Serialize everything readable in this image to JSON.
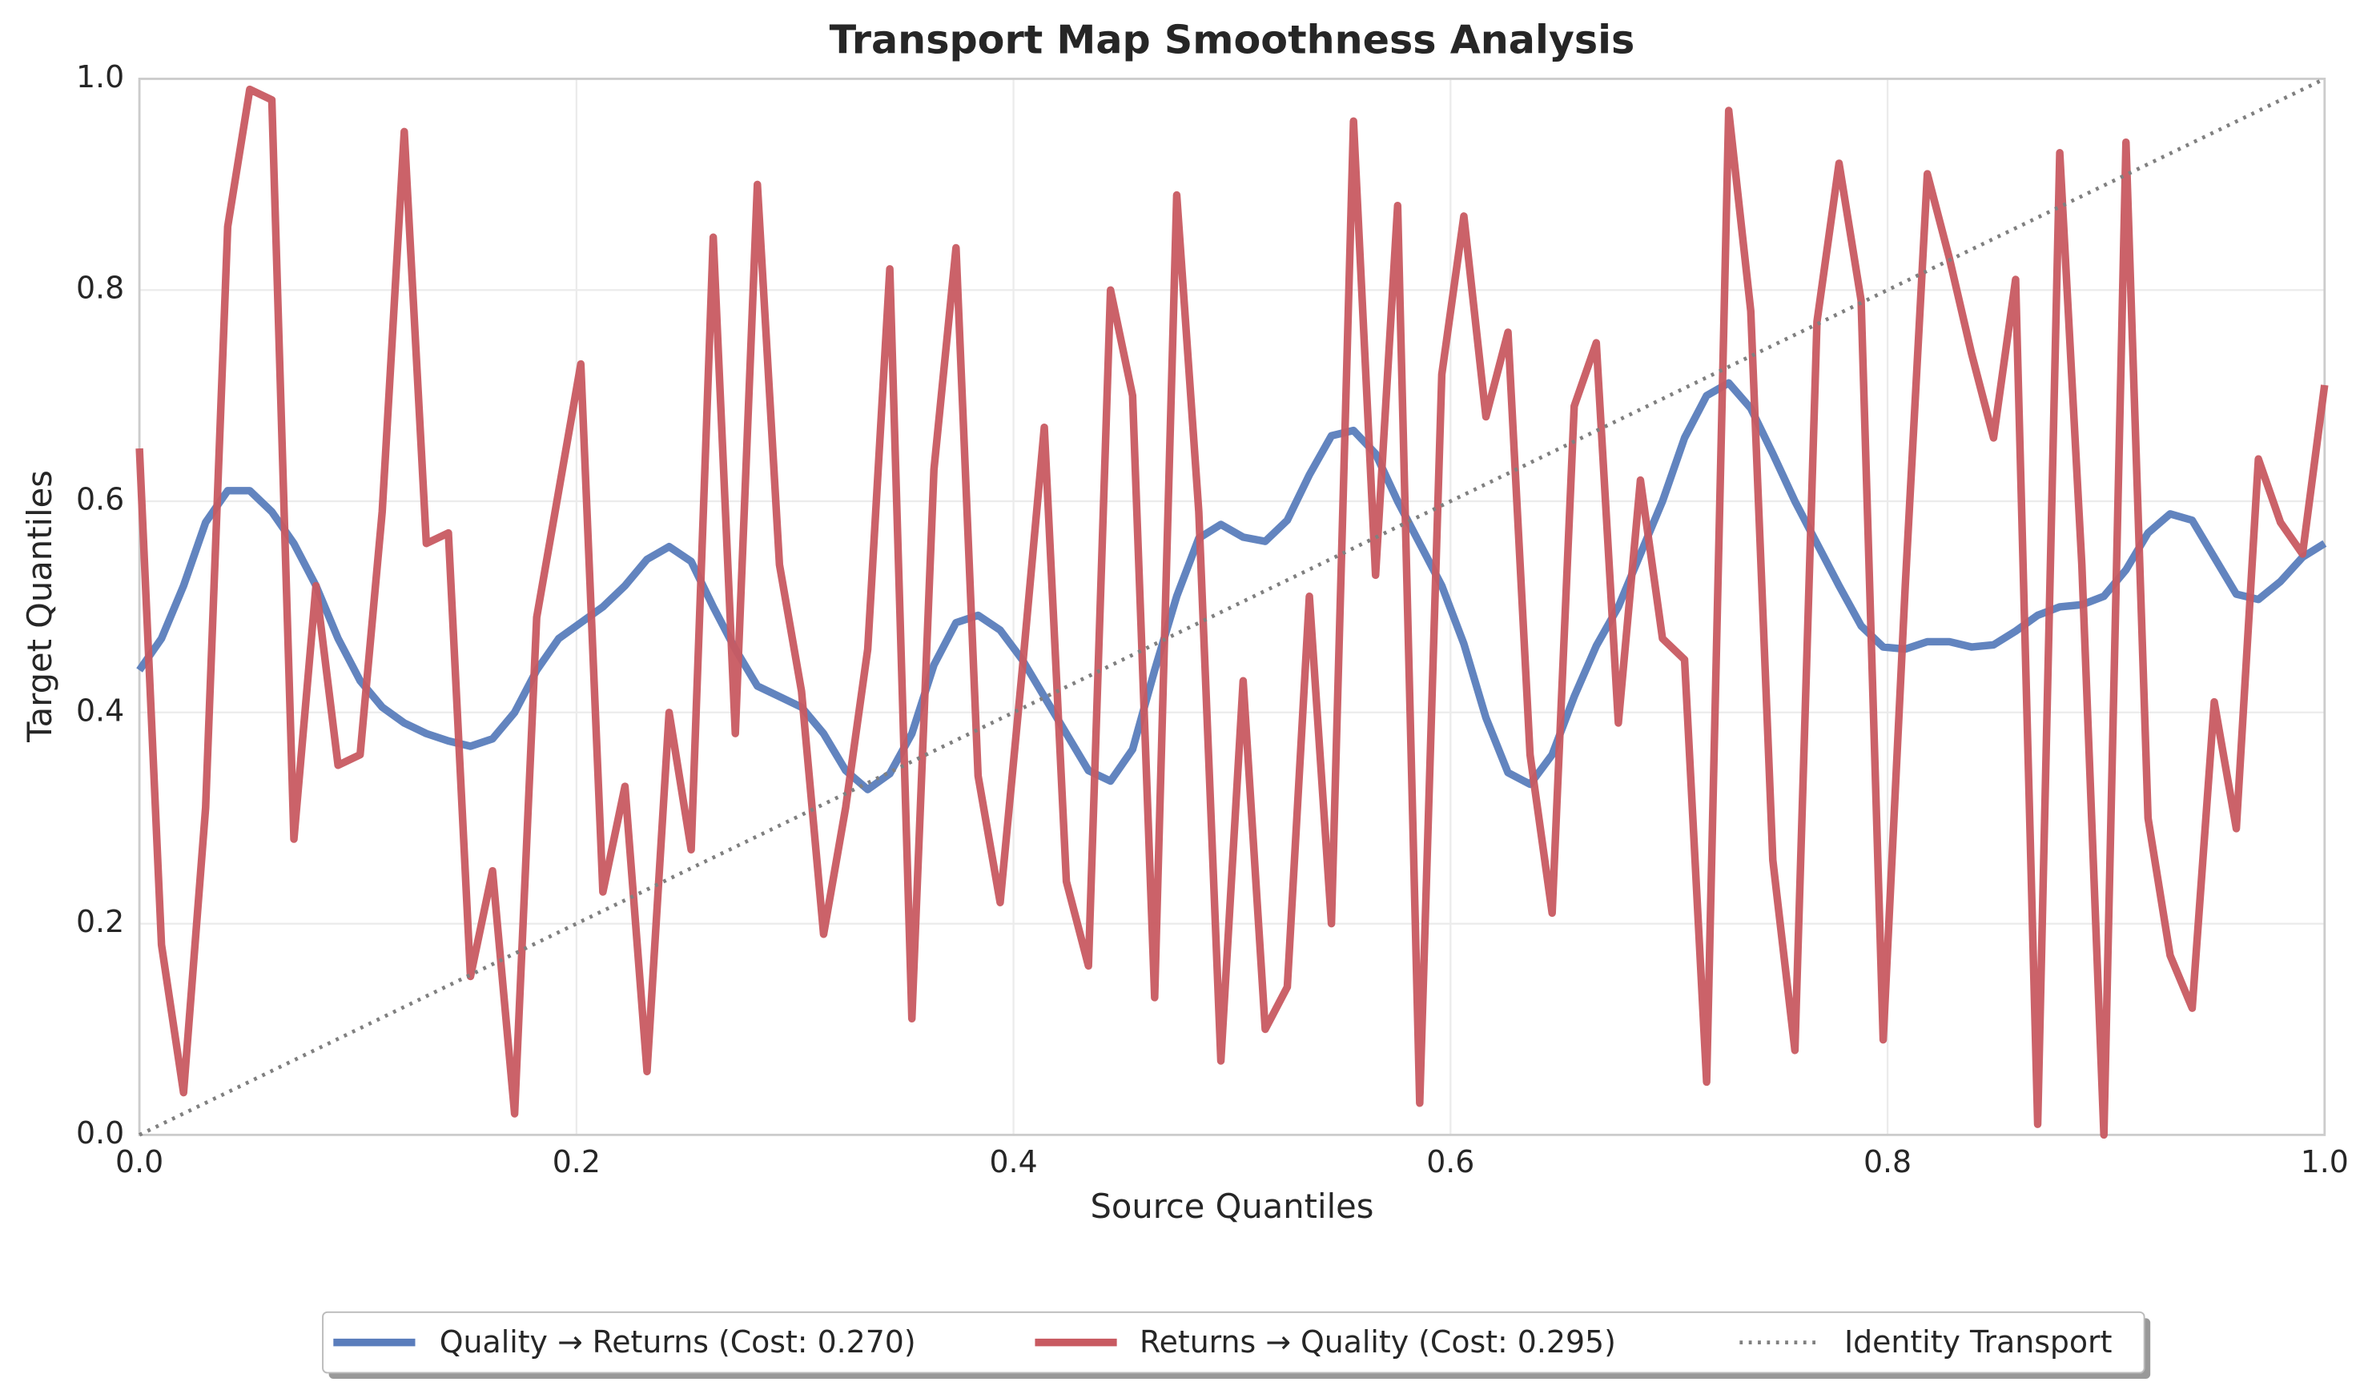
{
  "chart_data": {
    "type": "line",
    "title": "Transport Map Smoothness Analysis",
    "x_label": "Source Quantiles",
    "y_label": "Target Quantiles",
    "xlim": [
      0,
      1
    ],
    "ylim": [
      0,
      1
    ],
    "xticks": [
      {
        "value": 0,
        "label": "0.0"
      },
      0.2,
      0.4,
      0.6,
      0.8,
      {
        "value": 1,
        "label": "1.0"
      }
    ],
    "yticks": [
      {
        "value": 0,
        "label": "0.0"
      },
      0.2,
      0.4,
      0.6,
      0.8,
      {
        "value": 1,
        "label": "1.0"
      }
    ],
    "grid": true,
    "legend": "bottom",
    "x": [
      0,
      0.0101,
      0.0202,
      0.0303,
      0.0404,
      0.0505,
      0.0606,
      0.0707,
      0.0808,
      0.0909,
      0.101,
      0.1111,
      0.1212,
      0.1313,
      0.1414,
      0.1515,
      0.1616,
      0.1717,
      0.1818,
      0.1919,
      0.202,
      0.2121,
      0.2222,
      0.2323,
      0.2424,
      0.2525,
      0.2626,
      0.2727,
      0.2828,
      0.2929,
      0.303,
      0.3131,
      0.3232,
      0.3333,
      0.3434,
      0.3535,
      0.3636,
      0.3737,
      0.3838,
      0.3939,
      0.404,
      0.4141,
      0.4242,
      0.4343,
      0.4444,
      0.4545,
      0.4646,
      0.4747,
      0.4848,
      0.4949,
      0.5051,
      0.5152,
      0.5253,
      0.5354,
      0.5455,
      0.5556,
      0.5657,
      0.5758,
      0.5859,
      0.596,
      0.6061,
      0.6162,
      0.6263,
      0.6364,
      0.6465,
      0.6566,
      0.6667,
      0.6768,
      0.6869,
      0.697,
      0.7071,
      0.7172,
      0.7273,
      0.7374,
      0.7475,
      0.7576,
      0.7677,
      0.7778,
      0.7879,
      0.798,
      0.8081,
      0.8182,
      0.8283,
      0.8384,
      0.8485,
      0.8586,
      0.8687,
      0.8788,
      0.8889,
      0.899,
      0.9091,
      0.9192,
      0.9293,
      0.9394,
      0.9495,
      0.9596,
      0.9697,
      0.9798,
      0.9899,
      1
    ],
    "series": [
      {
        "name": "Quality → Returns (Cost: 0.270)",
        "color": "#5a7dbc",
        "style": "solid",
        "values": [
          0.44,
          0.47,
          0.52,
          0.58,
          0.61,
          0.61,
          0.59,
          0.56,
          0.52,
          0.47,
          0.43,
          0.405,
          0.39,
          0.38,
          0.373,
          0.368,
          0.375,
          0.4,
          0.44,
          0.47,
          0.485,
          0.5,
          0.52,
          0.545,
          0.557,
          0.543,
          0.5,
          0.46,
          0.425,
          0.415,
          0.405,
          0.38,
          0.345,
          0.327,
          0.342,
          0.38,
          0.445,
          0.485,
          0.492,
          0.478,
          0.45,
          0.415,
          0.38,
          0.345,
          0.335,
          0.365,
          0.44,
          0.51,
          0.565,
          0.578,
          0.566,
          0.562,
          0.582,
          0.625,
          0.662,
          0.667,
          0.645,
          0.6,
          0.56,
          0.52,
          0.465,
          0.395,
          0.343,
          0.332,
          0.36,
          0.415,
          0.463,
          0.5,
          0.55,
          0.6,
          0.66,
          0.7,
          0.712,
          0.688,
          0.645,
          0.6,
          0.56,
          0.52,
          0.482,
          0.462,
          0.46,
          0.467,
          0.467,
          0.462,
          0.464,
          0.477,
          0.492,
          0.5,
          0.502,
          0.51,
          0.535,
          0.57,
          0.588,
          0.582,
          0.547,
          0.512,
          0.507,
          0.524,
          0.547,
          0.56
        ]
      },
      {
        "name": "Returns → Quality (Cost: 0.295)",
        "color": "#c85a61",
        "style": "solid",
        "values": [
          0.65,
          0.18,
          0.04,
          0.31,
          0.86,
          0.99,
          0.98,
          0.28,
          0.52,
          0.35,
          0.36,
          0.59,
          0.95,
          0.56,
          0.57,
          0.15,
          0.25,
          0.02,
          0.49,
          0.61,
          0.73,
          0.23,
          0.33,
          0.06,
          0.4,
          0.27,
          0.85,
          0.38,
          0.9,
          0.54,
          0.42,
          0.19,
          0.31,
          0.46,
          0.82,
          0.11,
          0.63,
          0.84,
          0.34,
          0.22,
          0.44,
          0.67,
          0.24,
          0.16,
          0.8,
          0.7,
          0.13,
          0.89,
          0.59,
          0.07,
          0.43,
          0.1,
          0.14,
          0.51,
          0.2,
          0.96,
          0.53,
          0.88,
          0.03,
          0.72,
          0.87,
          0.68,
          0.76,
          0.36,
          0.21,
          0.69,
          0.75,
          0.39,
          0.62,
          0.47,
          0.45,
          0.05,
          0.97,
          0.78,
          0.26,
          0.08,
          0.77,
          0.92,
          0.79,
          0.09,
          0.52,
          0.91,
          0.83,
          0.74,
          0.66,
          0.81,
          0.01,
          0.93,
          0.54,
          0,
          0.94,
          0.3,
          0.17,
          0.12,
          0.41,
          0.29,
          0.64,
          0.58,
          0.55,
          0.71
        ]
      },
      {
        "name": "Identity Transport",
        "color": "#808080",
        "style": "dotted",
        "x": [
          0,
          1
        ],
        "values": [
          0,
          1
        ]
      }
    ]
  }
}
